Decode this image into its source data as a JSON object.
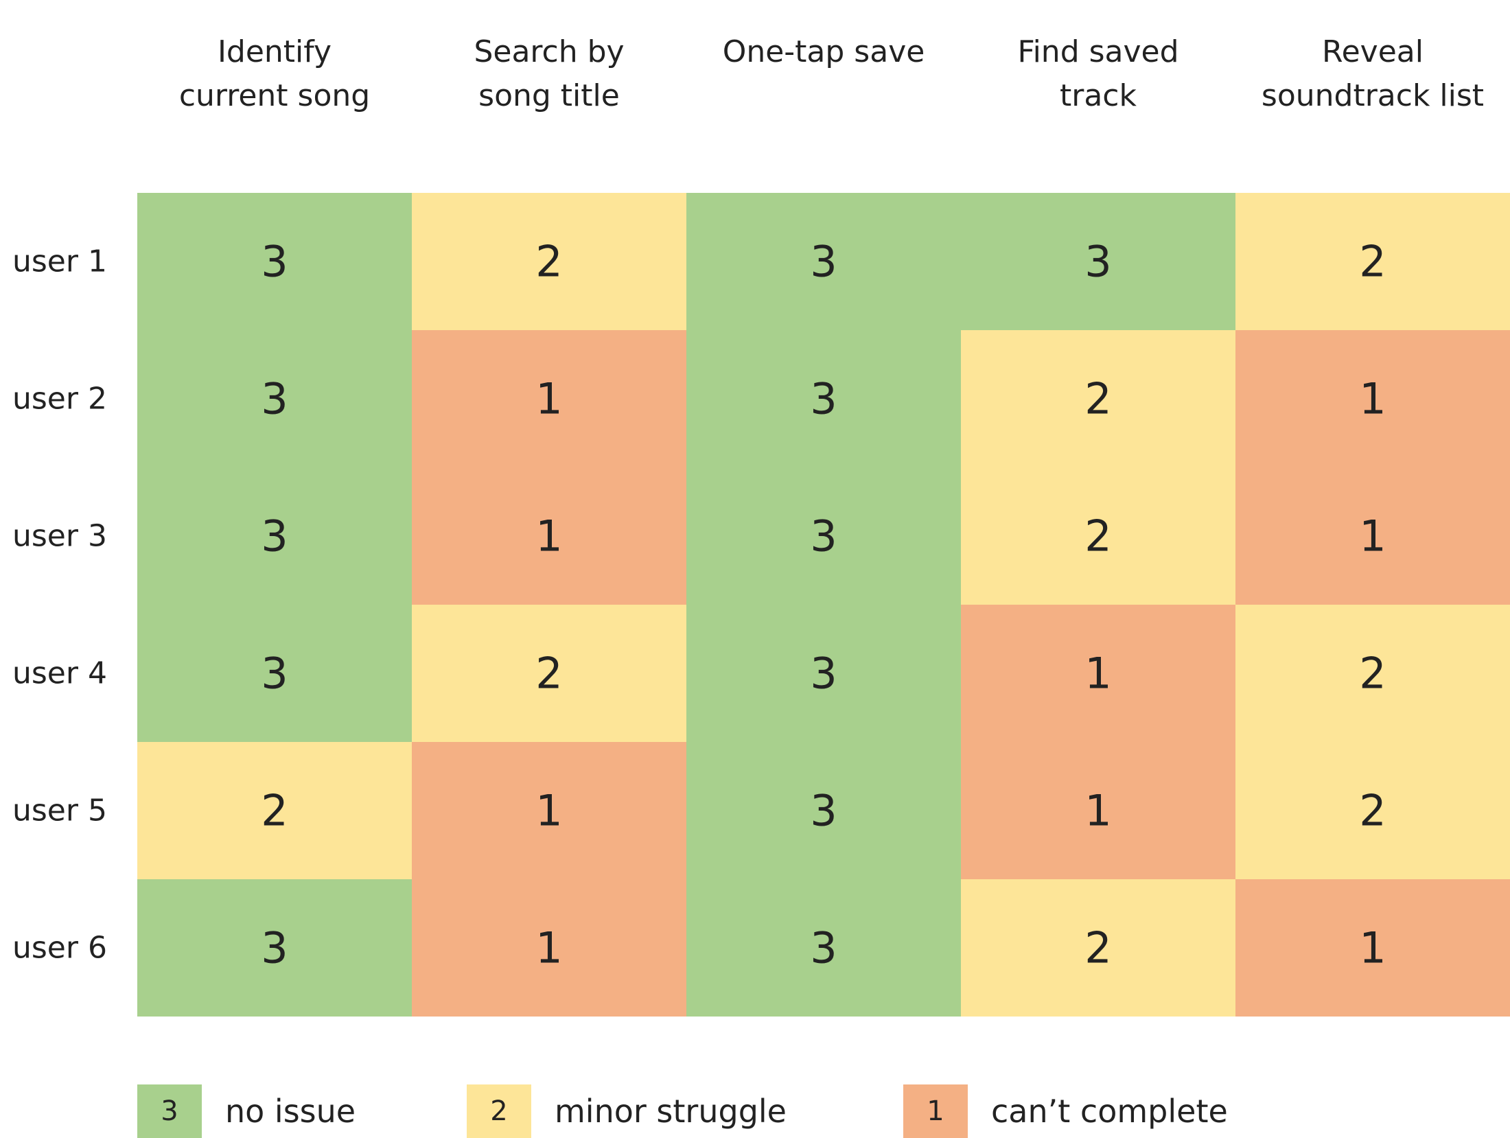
{
  "chart_data": {
    "type": "heatmap",
    "columns": [
      [
        "Identify",
        "current song"
      ],
      [
        "Search by",
        "song title"
      ],
      [
        "One-tap save"
      ],
      [
        "Find saved",
        "track"
      ],
      [
        "Reveal",
        "soundtrack list"
      ]
    ],
    "rows": [
      "user 1",
      "user 2",
      "user 3",
      "user 4",
      "user 5",
      "user 6"
    ],
    "values": [
      [
        3,
        2,
        3,
        3,
        2
      ],
      [
        3,
        1,
        3,
        2,
        1
      ],
      [
        3,
        1,
        3,
        2,
        1
      ],
      [
        3,
        2,
        3,
        1,
        2
      ],
      [
        2,
        1,
        3,
        1,
        2
      ],
      [
        3,
        1,
        3,
        2,
        1
      ]
    ],
    "color_scale": {
      "3": "#a8d08d",
      "2": "#fde598",
      "1": "#f4b084"
    },
    "legend": [
      {
        "value": "3",
        "label": "no issue"
      },
      {
        "value": "2",
        "label": "minor struggle"
      },
      {
        "value": "1",
        "label": "can’t complete"
      }
    ]
  }
}
